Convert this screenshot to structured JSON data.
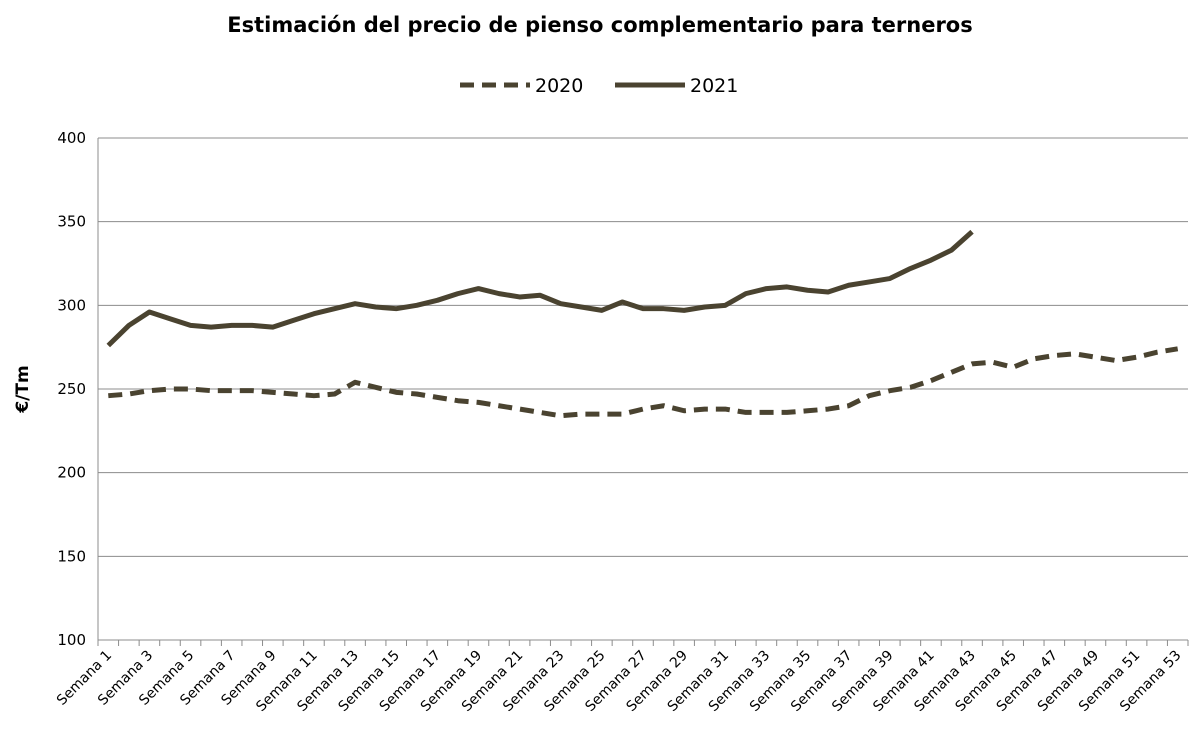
{
  "chart_data": {
    "type": "line",
    "title": "Estimación del precio de pienso complementario para terneros",
    "y_label": "€/Tm",
    "categories": [
      "Semana 1",
      null,
      "Semana 3",
      null,
      "Semana 5",
      null,
      "Semana 7",
      null,
      "Semana 9",
      null,
      "Semana 11",
      null,
      "Semana 13",
      null,
      "Semana 15",
      null,
      "Semana 17",
      null,
      "Semana 19",
      null,
      "Semana 21",
      null,
      "Semana 23",
      null,
      "Semana 25",
      null,
      "Semana 27",
      null,
      "Semana 29",
      null,
      "Semana 31",
      null,
      "Semana 33",
      null,
      "Semana 35",
      null,
      "Semana 37",
      null,
      "Semana 39",
      null,
      "Semana 41",
      null,
      "Semana 43",
      null,
      "Semana 45",
      null,
      "Semana 47",
      null,
      "Semana 49",
      null,
      "Semana 51",
      null,
      "Semana 53"
    ],
    "series": [
      {
        "name": "2020",
        "color": "#4a4330",
        "dash": true,
        "values": [
          246,
          247,
          249,
          250,
          250,
          249,
          249,
          249,
          248,
          247,
          246,
          247,
          254,
          251,
          248,
          247,
          245,
          243,
          242,
          240,
          238,
          236,
          234,
          235,
          235,
          235,
          238,
          240,
          237,
          238,
          238,
          236,
          236,
          236,
          237,
          238,
          240,
          246,
          249,
          251,
          255,
          260,
          265,
          266,
          263,
          268,
          270,
          271,
          269,
          267,
          269,
          272,
          274
        ]
      },
      {
        "name": "2021",
        "color": "#4a4330",
        "dash": false,
        "values": [
          276,
          288,
          296,
          292,
          288,
          287,
          288,
          288,
          287,
          291,
          295,
          298,
          301,
          299,
          298,
          300,
          303,
          307,
          310,
          307,
          305,
          306,
          301,
          299,
          297,
          302,
          298,
          298,
          297,
          299,
          300,
          307,
          310,
          311,
          309,
          308,
          312,
          314,
          316,
          322,
          327,
          333,
          344,
          null,
          null,
          null,
          null,
          null,
          null,
          null,
          null,
          null,
          null
        ]
      }
    ],
    "ylim": [
      100,
      400
    ],
    "yticks": [
      100,
      150,
      200,
      250,
      300,
      350,
      400
    ],
    "grid": true,
    "legend": "top"
  }
}
